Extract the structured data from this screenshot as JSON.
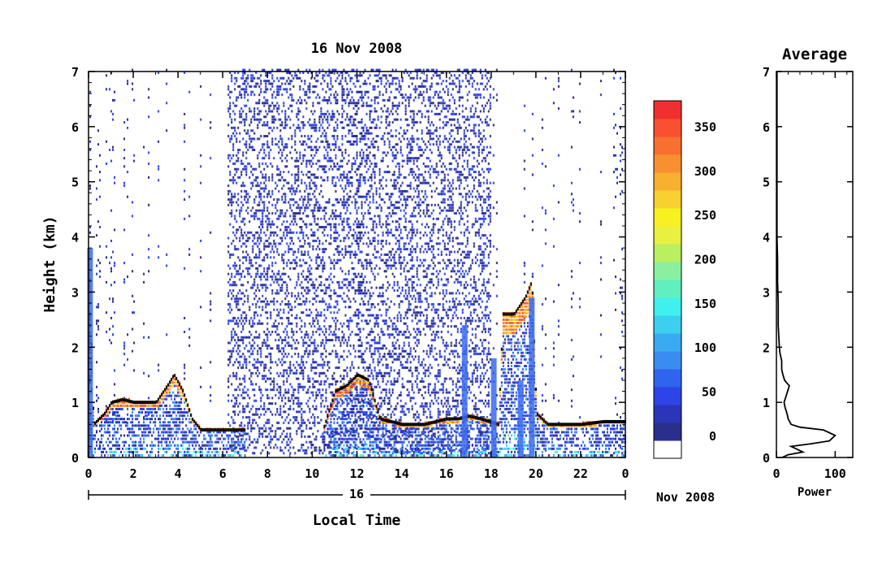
{
  "chart_data": [
    {
      "type": "heatmap",
      "title": "16 Nov 2008",
      "xlabel": "Local Time",
      "ylabel": "Height (km)",
      "x_ticks": [
        "0",
        "2",
        "4",
        "6",
        "8",
        "10",
        "12",
        "14",
        "16",
        "18",
        "20",
        "22",
        "0"
      ],
      "y_ticks": [
        "0",
        "1",
        "2",
        "3",
        "4",
        "5",
        "6",
        "7"
      ],
      "xlim": [
        0,
        24
      ],
      "ylim": [
        0,
        7
      ],
      "date_axis": {
        "day_label": "16",
        "month_label": "Nov 2008"
      },
      "colorbar": {
        "ticks": [
          "0",
          "50",
          "100",
          "150",
          "200",
          "250",
          "300",
          "350"
        ],
        "range": [
          -25,
          380
        ],
        "colors": [
          "#ffffff",
          "#2a2e8c",
          "#2a35b8",
          "#2f44e6",
          "#2f64ee",
          "#3a8cf0",
          "#3aaaf2",
          "#3cd0f0",
          "#40f0ee",
          "#60f0c0",
          "#8af0a0",
          "#b8f060",
          "#e8f040",
          "#f8f020",
          "#f8d030",
          "#f8b030",
          "#f89030",
          "#f87030",
          "#f85030",
          "#f03030"
        ]
      },
      "layers": {
        "noise_band_daytime_x": [
          6.2,
          18.0
        ],
        "boundary_layer_height_km": [
          [
            0.0,
            3.8
          ],
          [
            0.2,
            0.6
          ],
          [
            0.7,
            0.8
          ],
          [
            1.0,
            1.0
          ],
          [
            1.5,
            1.05
          ],
          [
            2.0,
            1.0
          ],
          [
            2.5,
            1.0
          ],
          [
            3.0,
            1.0
          ],
          [
            3.5,
            1.3
          ],
          [
            3.8,
            1.5
          ],
          [
            4.2,
            1.2
          ],
          [
            4.6,
            0.7
          ],
          [
            5.0,
            0.5
          ],
          [
            5.5,
            0.5
          ],
          [
            6.0,
            0.5
          ],
          [
            6.5,
            0.5
          ],
          [
            7.0,
            0.5
          ],
          [
            10.5,
            0.55
          ],
          [
            11.0,
            1.2
          ],
          [
            11.5,
            1.3
          ],
          [
            12.0,
            1.5
          ],
          [
            12.5,
            1.4
          ],
          [
            13.0,
            0.7
          ],
          [
            14.0,
            0.6
          ],
          [
            15.0,
            0.6
          ],
          [
            16.0,
            0.7
          ],
          [
            16.5,
            0.7
          ],
          [
            17.0,
            0.75
          ],
          [
            17.5,
            0.7
          ],
          [
            18.3,
            0.6
          ],
          [
            18.5,
            2.6
          ],
          [
            19.0,
            2.6
          ],
          [
            19.5,
            2.9
          ],
          [
            19.8,
            3.2
          ],
          [
            20.0,
            0.8
          ],
          [
            20.5,
            0.6
          ],
          [
            21.0,
            0.6
          ],
          [
            22.0,
            0.6
          ],
          [
            23.0,
            0.65
          ],
          [
            24.0,
            0.65
          ]
        ],
        "ground_clutter_heights_km": [
          0.15,
          0.3,
          0.45
        ]
      }
    },
    {
      "type": "line",
      "title": "Average",
      "xlabel": "Power",
      "ylabel": "",
      "x_ticks": [
        "0",
        "100"
      ],
      "y_ticks": [
        "0",
        "1",
        "2",
        "3",
        "4",
        "5",
        "6",
        "7"
      ],
      "xlim": [
        0,
        130
      ],
      "ylim": [
        0,
        7
      ],
      "series": [
        {
          "x": [
            10,
            20,
            45,
            35,
            25,
            60,
            90,
            100,
            80,
            40,
            25,
            20,
            18,
            15,
            13,
            16,
            22,
            14,
            11,
            9,
            9,
            6,
            5,
            3,
            3,
            2,
            2,
            1,
            1,
            1,
            1,
            1
          ],
          "y": [
            0.0,
            0.05,
            0.1,
            0.15,
            0.2,
            0.25,
            0.3,
            0.4,
            0.5,
            0.55,
            0.6,
            0.7,
            0.8,
            0.9,
            1.0,
            1.1,
            1.3,
            1.4,
            1.5,
            1.6,
            1.75,
            1.9,
            2.0,
            2.4,
            2.8,
            3.2,
            3.6,
            4.0,
            4.5,
            5.0,
            6.0,
            7.0
          ]
        }
      ]
    }
  ]
}
